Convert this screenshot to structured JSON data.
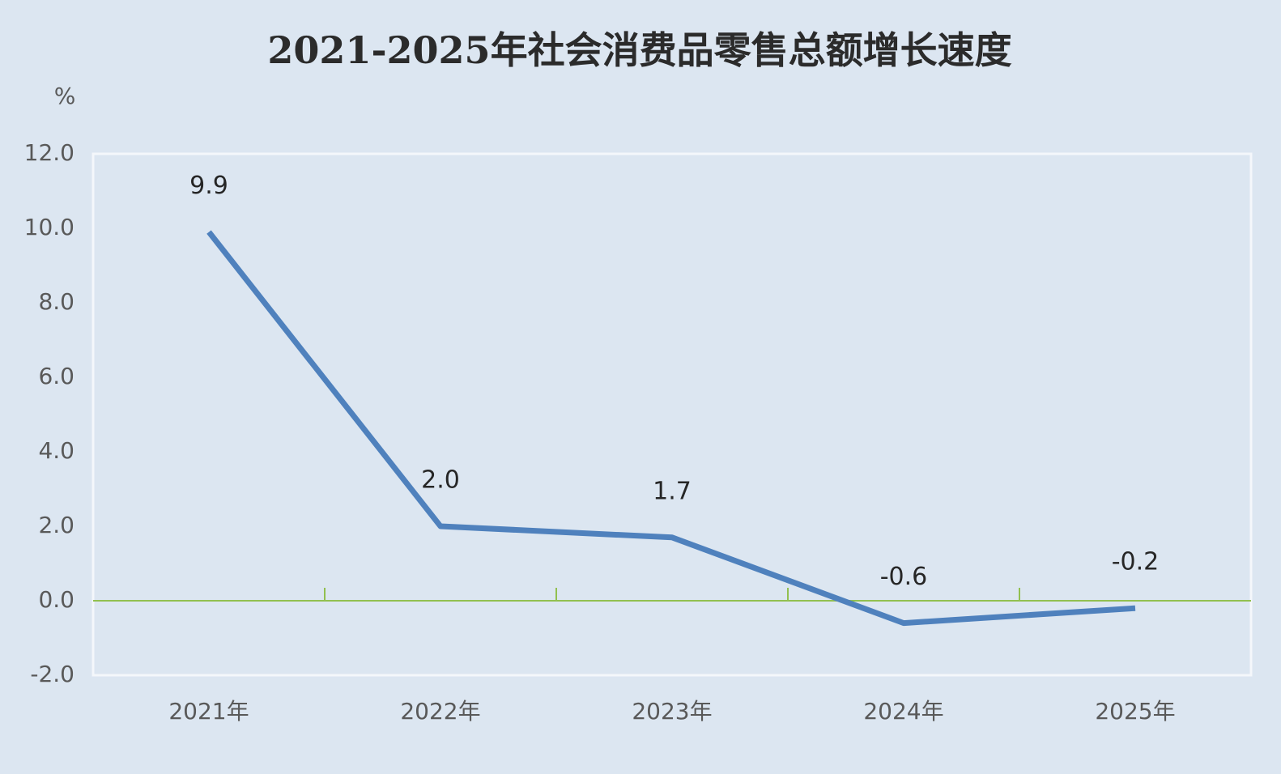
{
  "chart_data": {
    "type": "line",
    "title": "2021-2025年社会消费品零售总额增长速度",
    "y_label": "%",
    "categories": [
      "2021年",
      "2022年",
      "2023年",
      "2024年",
      "2025年"
    ],
    "series": [
      {
        "color": "#4f81bd",
        "values": [
          9.9,
          2,
          1.7,
          -0.6,
          -0.2
        ],
        "value_labels": [
          "9.9",
          "2.0",
          "1.7",
          "-0.6",
          "-0.2"
        ]
      }
    ],
    "ylim": [
      -2,
      12
    ],
    "yticks": [
      {
        "value": -2,
        "label": "-2.0"
      },
      {
        "value": 0,
        "label": "0.0"
      },
      {
        "value": 2,
        "label": "2.0"
      },
      {
        "value": 4,
        "label": "4.0"
      },
      {
        "value": 6,
        "label": "6.0"
      },
      {
        "value": 8,
        "label": "8.0"
      },
      {
        "value": 10,
        "label": "10.0"
      },
      {
        "value": 12,
        "label": "12.0"
      }
    ],
    "grid": false
  }
}
